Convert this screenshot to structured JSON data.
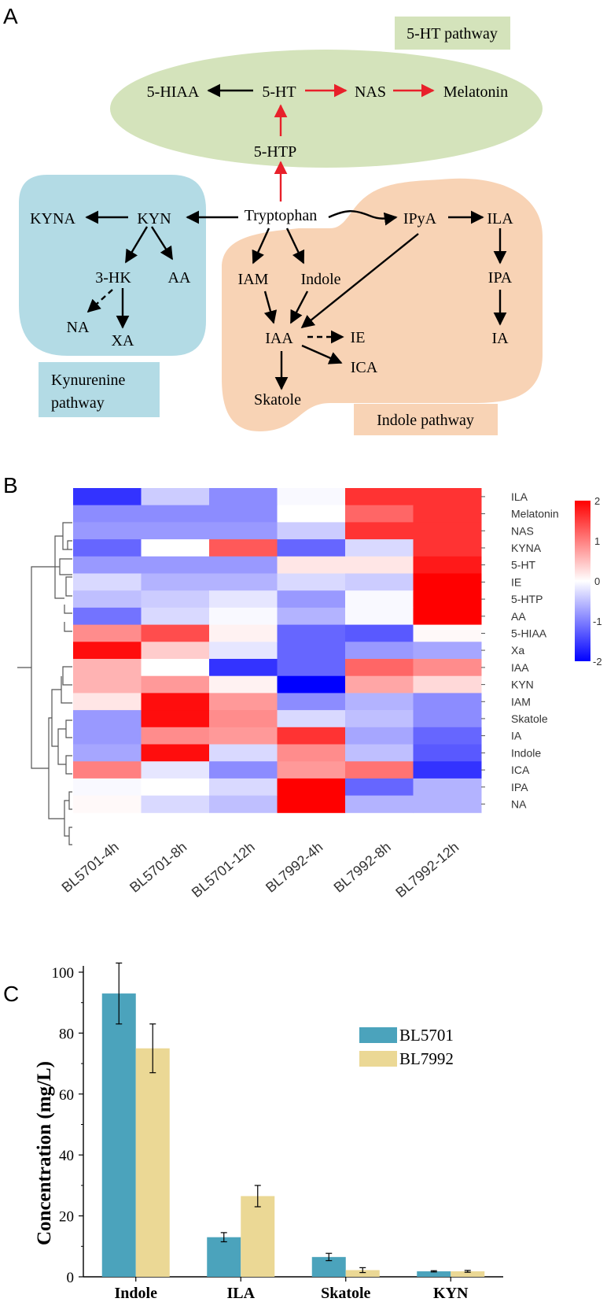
{
  "panelA": {
    "label": "A",
    "regions": {
      "serotonin": "5-HT pathway",
      "kynurenine_line1": "Kynurenine",
      "kynurenine_line2": "pathway",
      "indole": "Indole pathway"
    },
    "nodes": {
      "hiaa": "5-HIAA",
      "ht": "5-HT",
      "nas": "NAS",
      "melatonin": "Melatonin",
      "htp": "5-HTP",
      "tryptophan": "Tryptophan",
      "kyna": "KYNA",
      "kyn": "KYN",
      "hk": "3-HK",
      "aa": "AA",
      "na": "NA",
      "xa": "XA",
      "ipya": "IPyA",
      "ila": "ILA",
      "ipa": "IPA",
      "ia": "IA",
      "iam": "IAM",
      "indole": "Indole",
      "iaa": "IAA",
      "ie": "IE",
      "ica": "ICA",
      "skatole": "Skatole"
    },
    "colors": {
      "serotonin": "#d4e3bb",
      "kynurenine": "#b3dbe5",
      "indole": "#f8d3b5",
      "highlight_arrow": "#e8202a",
      "arrow": "#000000"
    }
  },
  "panelB": {
    "label": "B",
    "columns": [
      "BL5701-4h",
      "BL5701-8h",
      "BL5701-12h",
      "BL7992-4h",
      "BL7992-8h",
      "BL7992-12h"
    ],
    "rows": [
      "ILA",
      "Melatonin",
      "NAS",
      "KYNA",
      "5-HT",
      "IE",
      "5-HTP",
      "AA",
      "5-HIAA",
      "Xa",
      "IAA",
      "KYN",
      "IAM",
      "Skatole",
      "IA",
      "Indole",
      "ICA",
      "IPA",
      "NA"
    ],
    "values": [
      [
        -1.6,
        -0.4,
        -0.9,
        -0.05,
        1.6,
        1.6
      ],
      [
        -0.9,
        -0.9,
        -0.9,
        0.0,
        1.2,
        1.6
      ],
      [
        -0.8,
        -0.8,
        -0.8,
        -0.4,
        1.6,
        1.6
      ],
      [
        -1.2,
        0.0,
        1.3,
        -1.2,
        -0.3,
        1.6
      ],
      [
        -0.8,
        -0.8,
        -0.8,
        0.2,
        0.2,
        1.8
      ],
      [
        -0.3,
        -0.6,
        -0.6,
        -0.3,
        -0.4,
        2.0
      ],
      [
        -0.5,
        -0.4,
        -0.2,
        -0.8,
        -0.05,
        2.0
      ],
      [
        -1.1,
        -0.3,
        -0.05,
        -0.6,
        -0.05,
        2.0
      ],
      [
        0.9,
        1.4,
        0.1,
        -1.2,
        -1.3,
        0.05
      ],
      [
        1.9,
        0.4,
        -0.2,
        -1.2,
        -0.8,
        -0.7
      ],
      [
        0.6,
        0.0,
        -1.6,
        -1.2,
        1.2,
        0.9
      ],
      [
        0.6,
        0.8,
        0.1,
        -2.0,
        0.7,
        0.3
      ],
      [
        0.2,
        1.9,
        0.8,
        -0.9,
        -0.6,
        -0.9
      ],
      [
        -0.8,
        1.9,
        0.9,
        -0.3,
        -0.5,
        -0.9
      ],
      [
        -0.8,
        0.9,
        0.8,
        1.6,
        -0.7,
        -1.2
      ],
      [
        -0.7,
        1.9,
        -0.3,
        0.9,
        -0.5,
        -1.3
      ],
      [
        1.0,
        -0.2,
        -0.9,
        0.8,
        1.1,
        -1.6
      ],
      [
        -0.05,
        0.0,
        -0.3,
        2.0,
        -1.2,
        -0.6
      ],
      [
        0.05,
        -0.3,
        -0.5,
        2.0,
        -0.6,
        -0.6
      ]
    ],
    "colorbar": {
      "ticks": [
        "2",
        "1",
        "0",
        "-1",
        "-2"
      ],
      "min": -2,
      "max": 2
    }
  },
  "panelC": {
    "label": "C",
    "chart_data": {
      "type": "bar",
      "title": "",
      "xlabel": "",
      "ylabel": "Concentration (mg/L)",
      "ylim": [
        0,
        100
      ],
      "yticks": [
        "0",
        "20",
        "40",
        "60",
        "80",
        "100"
      ],
      "categories": [
        "Indole",
        "ILA",
        "Skatole",
        "KYN"
      ],
      "series": [
        {
          "name": "BL5701",
          "color": "#4ba3bc",
          "values": [
            93,
            13,
            6.5,
            1.8
          ],
          "errors": [
            10,
            1.5,
            1.2,
            0.2
          ]
        },
        {
          "name": "BL7992",
          "color": "#ebd895",
          "values": [
            75,
            26.5,
            2.2,
            1.8
          ],
          "errors": [
            8,
            3.5,
            0.8,
            0.3
          ]
        }
      ],
      "legend_position": "top-right"
    }
  }
}
